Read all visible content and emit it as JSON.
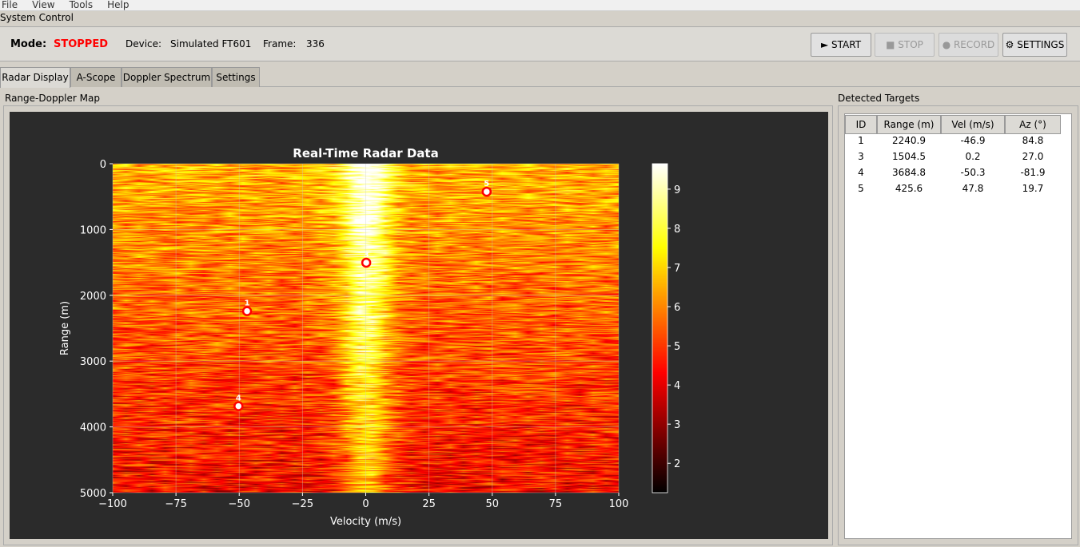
{
  "menu": [
    "File",
    "View",
    "Tools",
    "Help"
  ],
  "system_control": {
    "title": "System Control",
    "mode_label": "Mode:",
    "mode_value": "STOPPED",
    "mode_color": "#ff0000",
    "device_label": "Device:",
    "device_value": "Simulated FT601",
    "frame_label": "Frame:",
    "frame_value": "336"
  },
  "buttons": {
    "start": "► START",
    "stop": "■ STOP",
    "record": "● RECORD",
    "settings": "⚙ SETTINGS"
  },
  "tabs": [
    "Radar Display",
    "A-Scope",
    "Doppler Spectrum",
    "Settings"
  ],
  "left_title": "Range-Doppler Map",
  "right_title": "Detected Targets",
  "table": {
    "headers": [
      "ID",
      "Range (m)",
      "Vel (m/s)",
      "Az (°)"
    ],
    "rows": [
      [
        "1",
        "2240.9",
        "-46.9",
        "84.8"
      ],
      [
        "3",
        "1504.5",
        "0.2",
        "27.0"
      ],
      [
        "4",
        "3684.8",
        "-50.3",
        "-81.9"
      ],
      [
        "5",
        "425.6",
        "47.8",
        "19.7"
      ]
    ]
  },
  "chart_data": {
    "type": "heatmap",
    "title": "Real-Time Radar Data",
    "xlabel": "Velocity (m/s)",
    "ylabel": "Range (m)",
    "xlim": [
      -100,
      100
    ],
    "ylim": [
      5000,
      0
    ],
    "xticks": [
      "−100",
      "−75",
      "−50",
      "−25",
      "0",
      "25",
      "50",
      "75",
      "100"
    ],
    "yticks": [
      "0",
      "1000",
      "2000",
      "3000",
      "4000",
      "5000"
    ],
    "colormap": "hot",
    "colorbar": {
      "range": [
        1.25,
        9.65
      ],
      "ticks": [
        "2",
        "3",
        "4",
        "5",
        "6",
        "7",
        "8",
        "9"
      ]
    },
    "grid": true,
    "targets": [
      {
        "id": "1",
        "range": 2240.9,
        "velocity": -46.9
      },
      {
        "id": "3",
        "range": 1504.5,
        "velocity": 0.2
      },
      {
        "id": "4",
        "range": 3684.8,
        "velocity": -50.3
      },
      {
        "id": "5",
        "range": 425.6,
        "velocity": 47.8
      }
    ]
  }
}
